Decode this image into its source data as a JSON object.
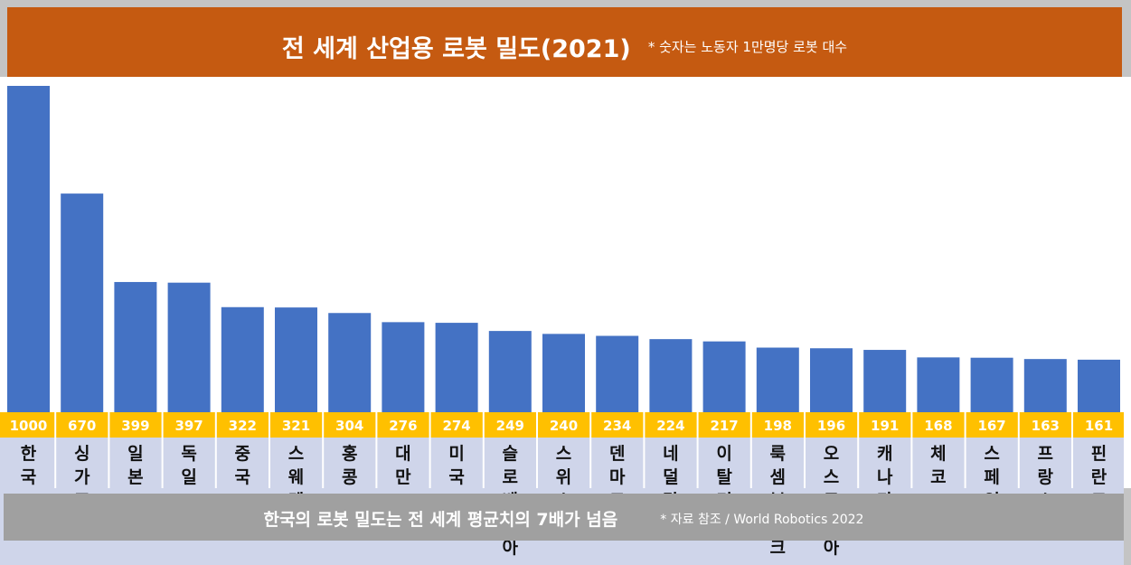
{
  "header": {
    "title": "전 세계 산업용 로봇 밀도(2021)",
    "note": "* 숫자는 노동자 1만명당 로봇 대수"
  },
  "footer": {
    "headline": "한국의 로봇 밀도는 전 세계 평균치의 7배가 넘음",
    "source": "* 자료 참조 / World Robotics 2022"
  },
  "colors": {
    "title_bg": "#c55a11",
    "bar": "#4472c4",
    "value_band": "#ffc000",
    "label_band": "#cfd5ea",
    "footer_bg": "#a0a0a0"
  },
  "chart_data": {
    "type": "bar",
    "title": "전 세계 산업용 로봇 밀도(2021)",
    "xlabel": "",
    "ylabel": "노동자 1만명당 로봇 대수",
    "ylim": [
      0,
      1000
    ],
    "categories": [
      "한국",
      "싱가포르",
      "일본",
      "독일",
      "중국",
      "스웨덴",
      "홍콩",
      "대만",
      "미국",
      "슬로베니아",
      "스위스",
      "덴마크",
      "네덜란드",
      "이탈리아",
      "룩셈부르크",
      "오스트리아",
      "캐나다",
      "체코",
      "스페인",
      "프랑스",
      "핀란드"
    ],
    "values": [
      1000,
      670,
      399,
      397,
      322,
      321,
      304,
      276,
      274,
      249,
      240,
      234,
      224,
      217,
      198,
      196,
      191,
      168,
      167,
      163,
      161
    ]
  }
}
